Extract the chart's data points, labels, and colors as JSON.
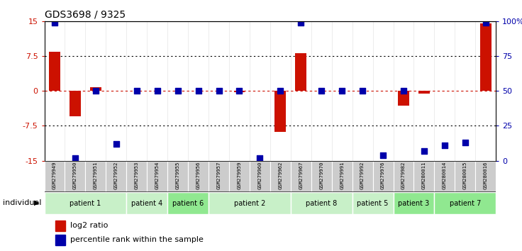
{
  "title": "GDS3698 / 9325",
  "samples": [
    "GSM279949",
    "GSM279950",
    "GSM279951",
    "GSM279952",
    "GSM279953",
    "GSM279954",
    "GSM279955",
    "GSM279956",
    "GSM279957",
    "GSM279959",
    "GSM279960",
    "GSM279962",
    "GSM279967",
    "GSM279970",
    "GSM279991",
    "GSM279992",
    "GSM279976",
    "GSM279982",
    "GSM280011",
    "GSM280014",
    "GSM280015",
    "GSM280016"
  ],
  "log2_ratio": [
    8.5,
    -5.5,
    0.8,
    0.0,
    0.0,
    0.0,
    0.0,
    0.0,
    0.0,
    -0.3,
    0.0,
    -8.8,
    8.2,
    0.0,
    0.0,
    0.0,
    0.0,
    -3.2,
    -0.5,
    0.0,
    0.0,
    14.5
  ],
  "percentile_rank": [
    99,
    2,
    50,
    12,
    50,
    50,
    50,
    50,
    50,
    50,
    2,
    50,
    99,
    50,
    50,
    50,
    4,
    50,
    7,
    11,
    13,
    99
  ],
  "patients": [
    {
      "label": "patient 1",
      "start": 0,
      "end": 4,
      "color": "#c8f0c8"
    },
    {
      "label": "patient 4",
      "start": 4,
      "end": 6,
      "color": "#c8f0c8"
    },
    {
      "label": "patient 6",
      "start": 6,
      "end": 8,
      "color": "#90e890"
    },
    {
      "label": "patient 2",
      "start": 8,
      "end": 12,
      "color": "#c8f0c8"
    },
    {
      "label": "patient 8",
      "start": 12,
      "end": 15,
      "color": "#c8f0c8"
    },
    {
      "label": "patient 5",
      "start": 15,
      "end": 17,
      "color": "#c8f0c8"
    },
    {
      "label": "patient 3",
      "start": 17,
      "end": 19,
      "color": "#90e890"
    },
    {
      "label": "patient 7",
      "start": 19,
      "end": 22,
      "color": "#90e890"
    }
  ],
  "ylim_left": [
    -15,
    15
  ],
  "ylim_right": [
    0,
    100
  ],
  "yticks_left": [
    -15,
    -7.5,
    0,
    7.5,
    15
  ],
  "ytick_labels_left": [
    "-15",
    "-7.5",
    "0",
    "7.5",
    "15"
  ],
  "yticks_right": [
    0,
    25,
    50,
    75,
    100
  ],
  "ytick_labels_right": [
    "0",
    "25",
    "50",
    "75",
    "100%"
  ],
  "bar_color": "#cc1100",
  "dot_color": "#0000aa",
  "bar_width": 0.55,
  "dot_size": 30,
  "sample_bg_color": "#cccccc",
  "sample_border_color": "#ffffff",
  "individual_label": "individual",
  "legend_log2": "log2 ratio",
  "legend_pct": "percentile rank within the sample"
}
